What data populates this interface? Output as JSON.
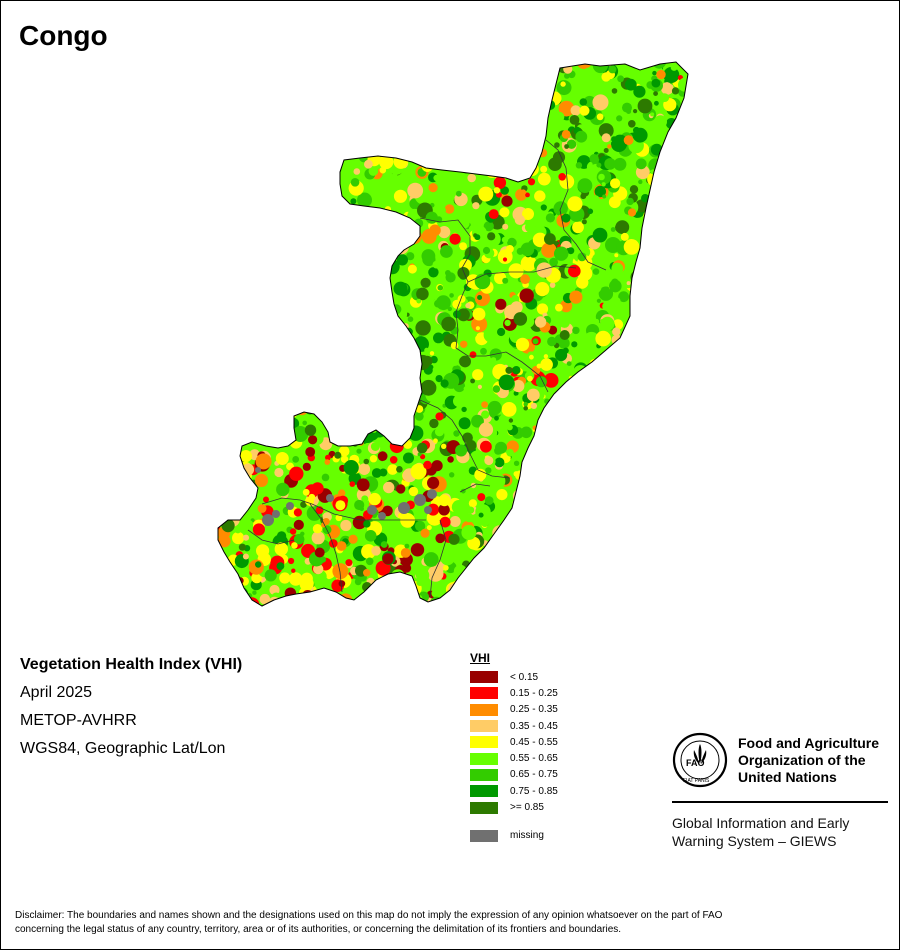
{
  "map": {
    "country": "Congo",
    "product": "Vegetation Health Index (VHI)",
    "period": "April 2025",
    "sensor": "METOP-AVHRR",
    "projection": "WGS84, Geographic Lat/Lon"
  },
  "legend": {
    "title": "VHI",
    "classes": [
      {
        "label": "< 0.15",
        "color": "#990000"
      },
      {
        "label": "0.15 - 0.25",
        "color": "#ff0000"
      },
      {
        "label": "0.25 - 0.35",
        "color": "#ff8c00"
      },
      {
        "label": "0.35 - 0.45",
        "color": "#ffcc66"
      },
      {
        "label": "0.45 - 0.55",
        "color": "#ffff00"
      },
      {
        "label": "0.55 - 0.65",
        "color": "#66ff00"
      },
      {
        "label": "0.65 - 0.75",
        "color": "#33cc00"
      },
      {
        "label": "0.75 - 0.85",
        "color": "#009900"
      },
      {
        "label": ">= 0.85",
        "color": "#2d7a00"
      }
    ],
    "missing": {
      "label": "missing",
      "color": "#707070"
    }
  },
  "logo": {
    "emblem_letters": "FAO",
    "motto": "FIAT PANIS",
    "org_line1": "Food and Agriculture",
    "org_line2": "Organization of the",
    "org_line3": "United Nations",
    "giews_line1": "Global Information and Early",
    "giews_line2": "Warning System – GIEWS"
  },
  "disclaimer": {
    "line1": "Disclaimer: The boundaries and names shown and the designations used on this map do not imply the expression of any opinion whatsoever on the part of FAO",
    "line2": "concerning the legal status of any country, territory, area or of its authorities, or concerning the delimitation of its frontiers and boundaries."
  }
}
